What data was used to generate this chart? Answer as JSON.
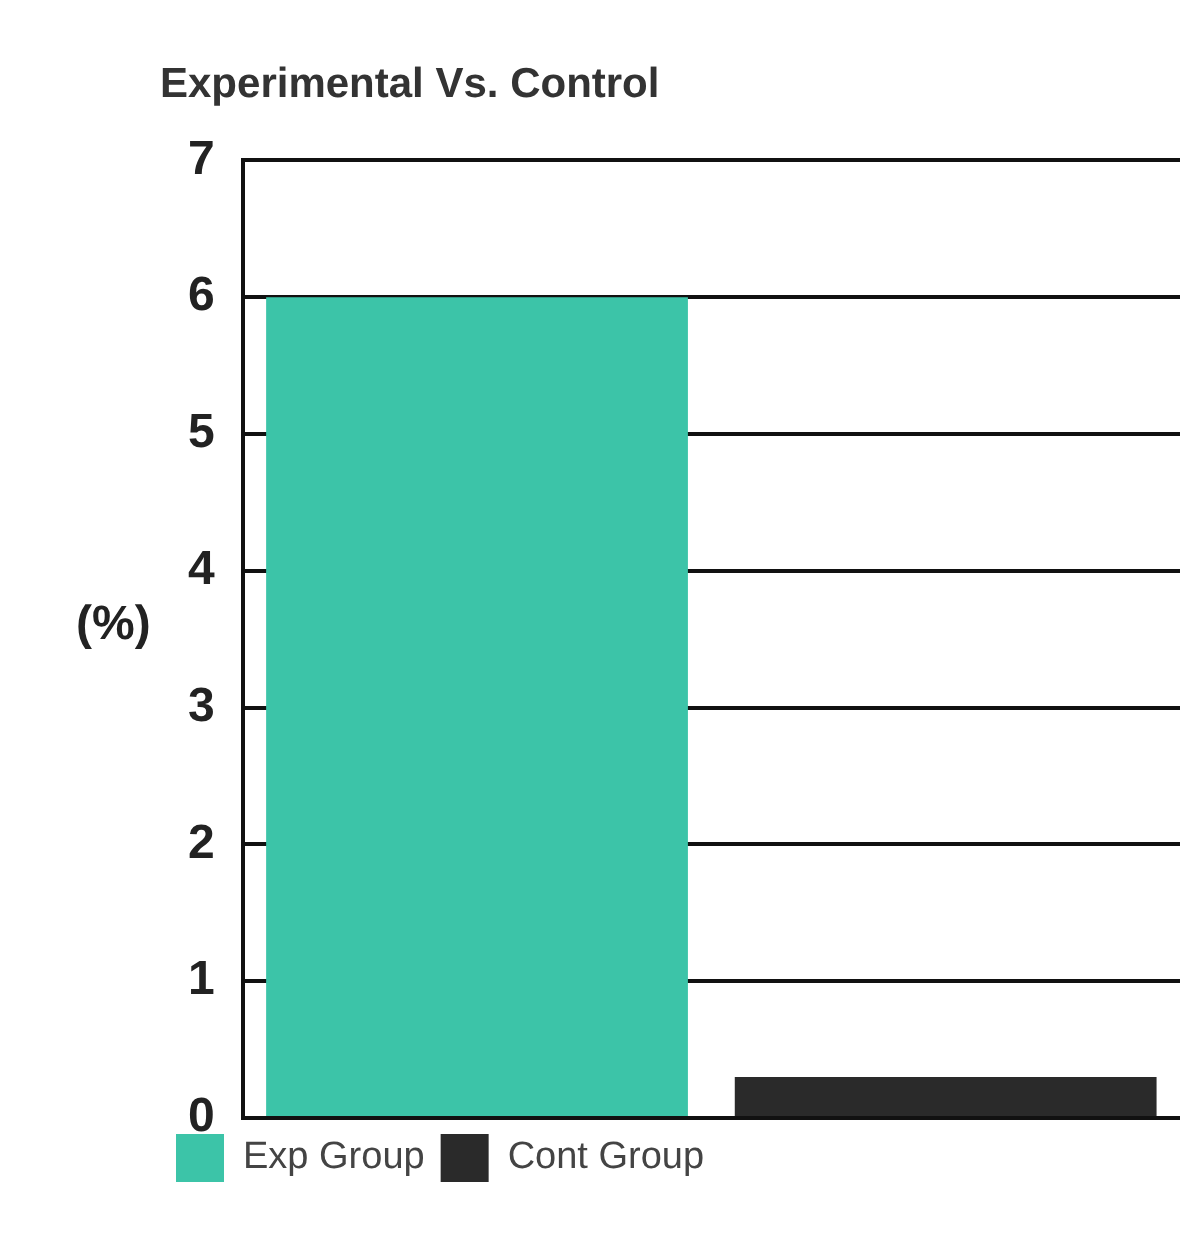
{
  "chart_data": {
    "type": "bar",
    "title": "Experimental Vs. Control",
    "ylabel": "(%)",
    "categories": [
      null,
      null
    ],
    "series": [
      {
        "name": "Exp Group",
        "color": "#3cc4a8",
        "values": [
          6,
          null
        ]
      },
      {
        "name": "Cont Group",
        "color": "#2a2a2a",
        "values": [
          null,
          0.3
        ]
      }
    ],
    "ylim": [
      0,
      7
    ],
    "yticks": [
      0,
      1,
      2,
      3,
      4,
      5,
      6,
      7
    ],
    "grid": "y",
    "legend": "bottom"
  }
}
